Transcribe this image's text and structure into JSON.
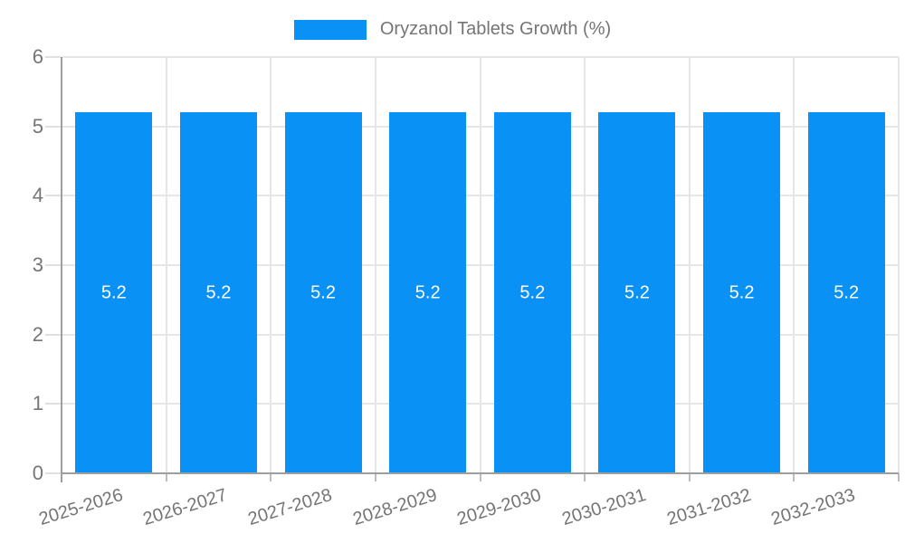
{
  "legend": {
    "label": "Oryzanol Tablets Growth (%)"
  },
  "chart_data": {
    "type": "bar",
    "title": "Oryzanol Tablets Growth (%)",
    "categories": [
      "2025-2026",
      "2026-2027",
      "2027-2028",
      "2028-2029",
      "2029-2030",
      "2030-2031",
      "2031-2032",
      "2032-2033"
    ],
    "series": [
      {
        "name": "Oryzanol Tablets Growth (%)",
        "values": [
          5.2,
          5.2,
          5.2,
          5.2,
          5.2,
          5.2,
          5.2,
          5.2
        ]
      }
    ],
    "value_labels": [
      "5.2",
      "5.2",
      "5.2",
      "5.2",
      "5.2",
      "5.2",
      "5.2",
      "5.2"
    ],
    "xlabel": "",
    "ylabel": "",
    "ylim": [
      0,
      6
    ],
    "yticks": [
      0,
      1,
      2,
      3,
      4,
      5,
      6
    ],
    "grid": true,
    "legend_position": "top",
    "colors": {
      "bar": "#0991f5",
      "value_label": "#ffffff",
      "axis_text": "#757575",
      "gridline": "#e6e6e6",
      "axis_line": "#9e9e9e"
    }
  }
}
